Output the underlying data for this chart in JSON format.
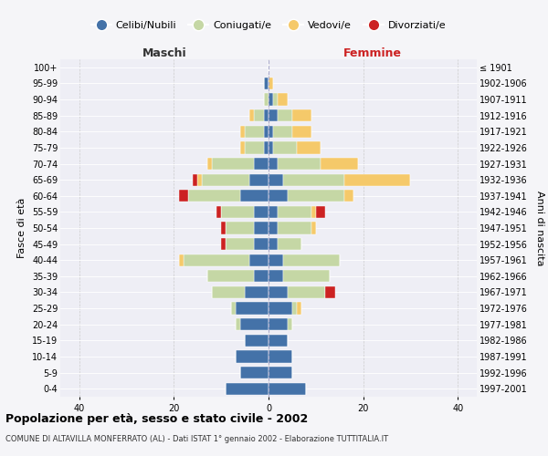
{
  "age_groups": [
    "100+",
    "95-99",
    "90-94",
    "85-89",
    "80-84",
    "75-79",
    "70-74",
    "65-69",
    "60-64",
    "55-59",
    "50-54",
    "45-49",
    "40-44",
    "35-39",
    "30-34",
    "25-29",
    "20-24",
    "15-19",
    "10-14",
    "5-9",
    "0-4"
  ],
  "birth_years": [
    "≤ 1901",
    "1902-1906",
    "1907-1911",
    "1912-1916",
    "1917-1921",
    "1922-1926",
    "1927-1931",
    "1932-1936",
    "1937-1941",
    "1942-1946",
    "1947-1951",
    "1952-1956",
    "1957-1961",
    "1962-1966",
    "1967-1971",
    "1972-1976",
    "1977-1981",
    "1982-1986",
    "1987-1991",
    "1992-1996",
    "1997-2001"
  ],
  "colors": {
    "celibi": "#4472a8",
    "coniugati": "#c5d7a5",
    "vedovi": "#f5c96a",
    "divorziati": "#cc2222"
  },
  "maschi": {
    "celibi": [
      0,
      1,
      0,
      1,
      1,
      1,
      3,
      4,
      6,
      3,
      3,
      3,
      4,
      3,
      5,
      7,
      6,
      5,
      7,
      6,
      9
    ],
    "coniugati": [
      0,
      0,
      1,
      2,
      4,
      4,
      9,
      10,
      11,
      7,
      6,
      6,
      14,
      10,
      7,
      1,
      1,
      0,
      0,
      0,
      0
    ],
    "vedovi": [
      0,
      0,
      0,
      1,
      1,
      1,
      1,
      1,
      0,
      0,
      0,
      0,
      1,
      0,
      0,
      0,
      0,
      0,
      0,
      0,
      0
    ],
    "divorziati": [
      0,
      0,
      0,
      0,
      0,
      0,
      0,
      1,
      2,
      1,
      1,
      1,
      0,
      0,
      0,
      0,
      0,
      0,
      0,
      0,
      0
    ]
  },
  "femmine": {
    "celibi": [
      0,
      0,
      1,
      2,
      1,
      1,
      2,
      3,
      4,
      2,
      2,
      2,
      3,
      3,
      4,
      5,
      4,
      4,
      5,
      5,
      8
    ],
    "coniugati": [
      0,
      0,
      1,
      3,
      4,
      5,
      9,
      13,
      12,
      7,
      7,
      5,
      12,
      10,
      8,
      1,
      1,
      0,
      0,
      0,
      0
    ],
    "vedovi": [
      0,
      1,
      2,
      4,
      4,
      5,
      8,
      14,
      2,
      1,
      1,
      0,
      0,
      0,
      0,
      1,
      0,
      0,
      0,
      0,
      0
    ],
    "divorziati": [
      0,
      0,
      0,
      0,
      0,
      0,
      0,
      0,
      0,
      2,
      0,
      0,
      0,
      0,
      2,
      0,
      0,
      0,
      0,
      0,
      0
    ]
  },
  "xlim": 44,
  "title": "Popolazione per età, sesso e stato civile - 2002",
  "subtitle": "COMUNE DI ALTAVILLA MONFERRATO (AL) - Dati ISTAT 1° gennaio 2002 - Elaborazione TUTTITALIA.IT",
  "xlabel_left": "Maschi",
  "xlabel_right": "Femmine",
  "ylabel": "Fasce di età",
  "ylabel_right": "Anni di nascita",
  "legend_labels": [
    "Celibi/Nubili",
    "Coniugati/e",
    "Vedovi/e",
    "Divorziati/e"
  ],
  "bg_color": "#f5f5f8",
  "plot_bg": "#eeeef5"
}
